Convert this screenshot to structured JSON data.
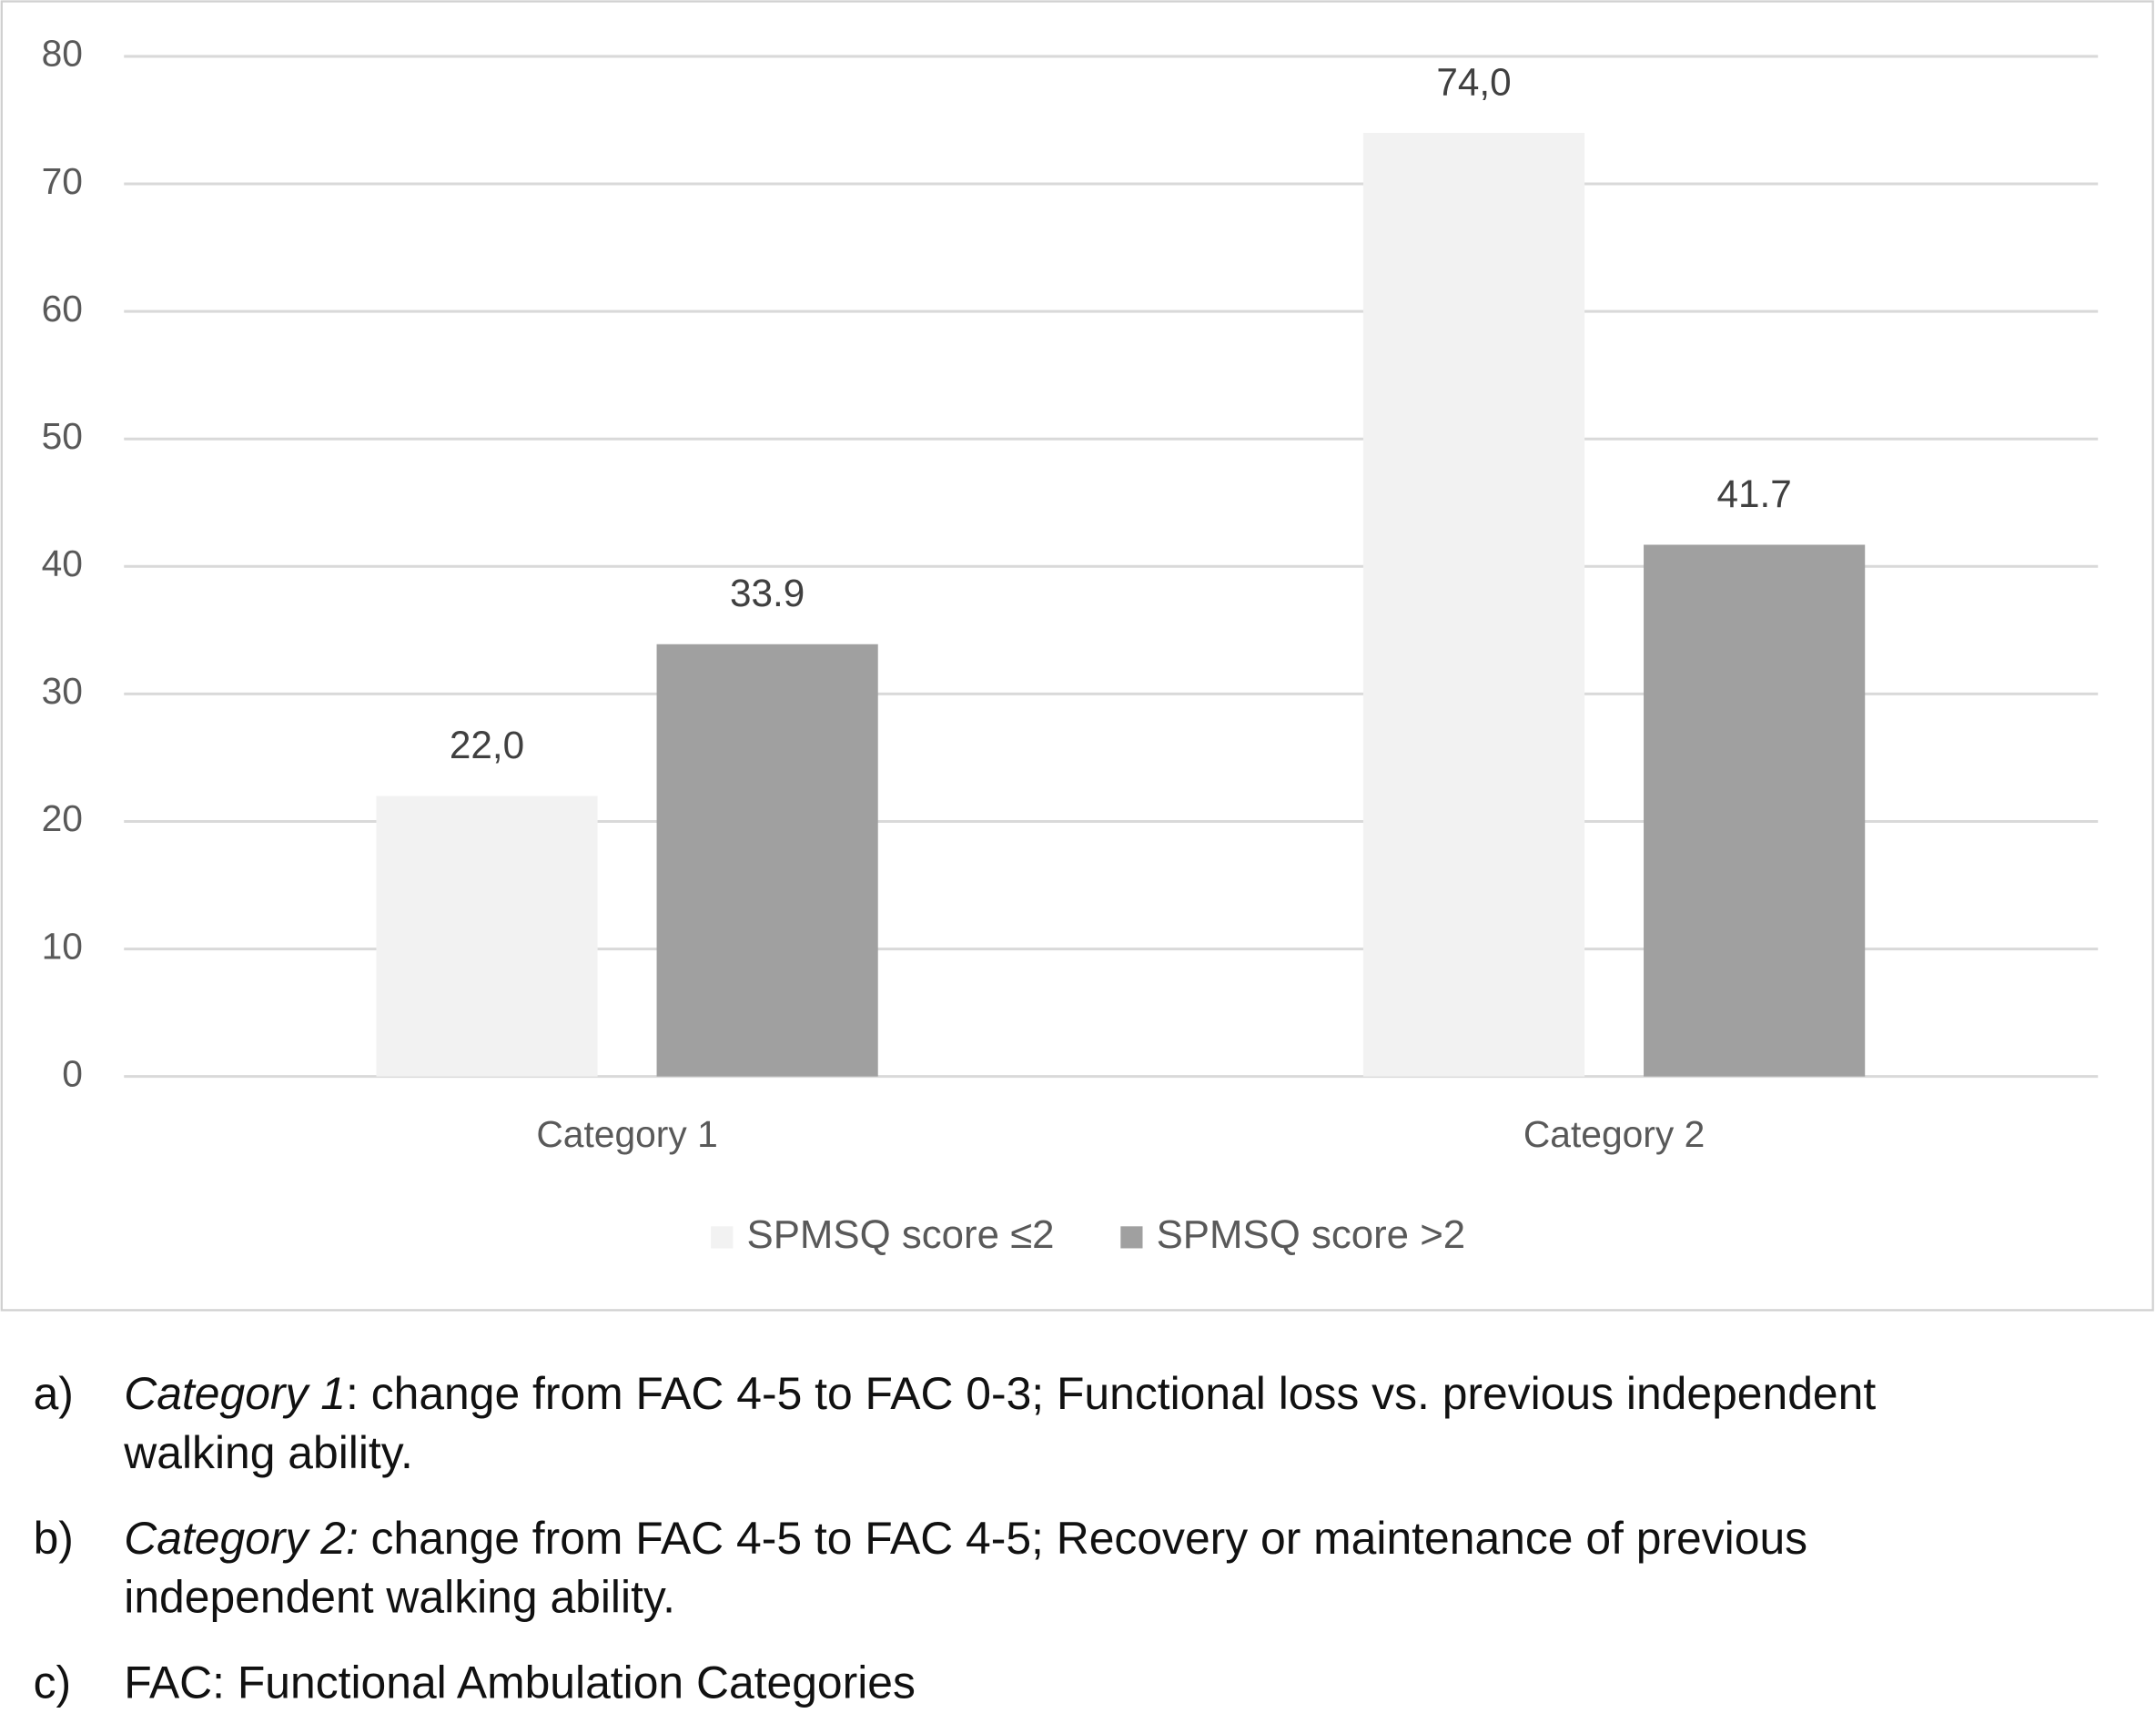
{
  "chart_data": {
    "type": "bar",
    "categories": [
      "Category 1",
      "Category 2"
    ],
    "series": [
      {
        "name": "SPMSQ score ≤2",
        "color": "#f2f2f2",
        "values": [
          22,
          74
        ],
        "value_labels": [
          "22,0",
          "74,0"
        ]
      },
      {
        "name": "SPMSQ score >2",
        "color": "#a0a0a0",
        "values": [
          33.9,
          41.7
        ],
        "value_labels": [
          "33.9",
          "41.7"
        ]
      }
    ],
    "ylim": [
      0,
      80
    ],
    "yticks": [
      0,
      10,
      20,
      30,
      40,
      50,
      60,
      70,
      80
    ],
    "grid": true,
    "legend": "bottom"
  },
  "notes": [
    {
      "label": "a)",
      "term": "Category 1",
      "lines": [
        ": change from FAC 4-5 to FAC 0-3; Functional loss vs. previous independent",
        "walking ability."
      ]
    },
    {
      "label": "b)",
      "term": "Category 2:",
      "lines": [
        "change from FAC 4-5 to FAC 4-5; Recovery or maintenance of previous",
        "independent walking ability."
      ]
    },
    {
      "label": "c)",
      "lines": [
        "FAC: Functional Ambulation Categories"
      ]
    }
  ]
}
